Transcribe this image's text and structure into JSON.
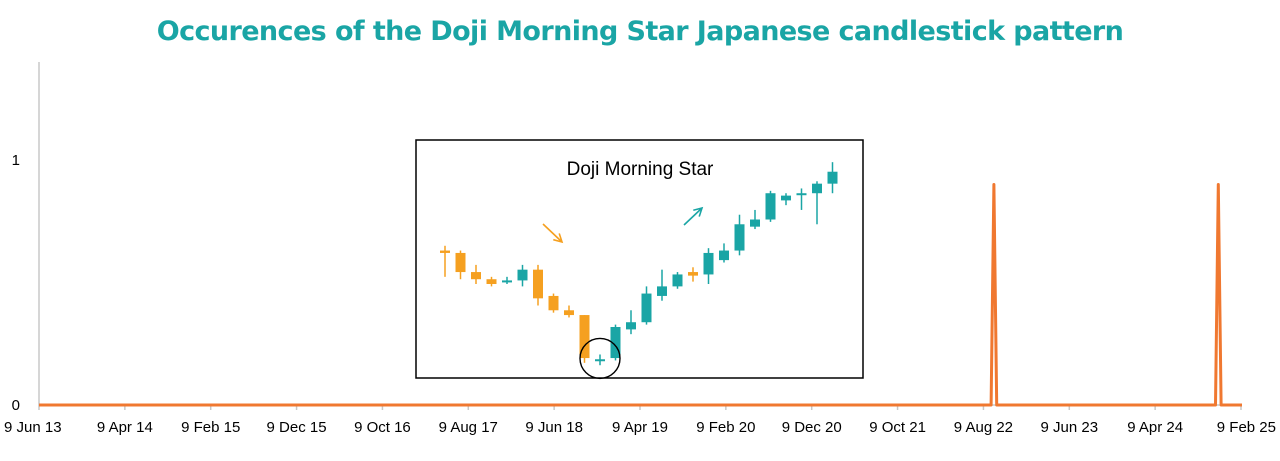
{
  "chart_data": {
    "type": "line",
    "title": "Occurences of the Doji Morning Star Japanese candlestick pattern",
    "xlabel": "",
    "ylabel": "",
    "x_tick_labels": [
      "9 Jun 13",
      "9 Apr 14",
      "9 Feb 15",
      "9 Dec 15",
      "9 Oct 16",
      "9 Aug 17",
      "9 Jun 18",
      "9 Apr 19",
      "9 Feb 20",
      "9 Dec 20",
      "9 Oct 21",
      "9 Aug 22",
      "9 Jun 23",
      "9 Apr 24",
      "9 Feb 25"
    ],
    "y_tick_labels": [
      "0",
      "1"
    ],
    "ylim": [
      0,
      1.4
    ],
    "grid": false,
    "series": [
      {
        "x": [
          "2013-06-09",
          "2022-09-05",
          "2022-09-15",
          "2022-09-25",
          "2024-11-10",
          "2024-11-20",
          "2024-11-30",
          "2025-03-01"
        ],
        "values": [
          0,
          0,
          0.9,
          0,
          0,
          0.9,
          0,
          0
        ]
      }
    ],
    "inset": {
      "title": "Doji Morning Star",
      "candles": [
        {
          "o": 0.68,
          "c": 0.67,
          "h": 0.7,
          "l": 0.57
        },
        {
          "o": 0.67,
          "c": 0.59,
          "h": 0.68,
          "l": 0.56
        },
        {
          "o": 0.59,
          "c": 0.56,
          "h": 0.62,
          "l": 0.54
        },
        {
          "o": 0.56,
          "c": 0.54,
          "h": 0.57,
          "l": 0.53
        },
        {
          "o": 0.55,
          "c": 0.555,
          "h": 0.57,
          "l": 0.54
        },
        {
          "o": 0.555,
          "c": 0.6,
          "h": 0.62,
          "l": 0.53
        },
        {
          "o": 0.6,
          "c": 0.48,
          "h": 0.62,
          "l": 0.45
        },
        {
          "o": 0.49,
          "c": 0.43,
          "h": 0.5,
          "l": 0.42
        },
        {
          "o": 0.43,
          "c": 0.41,
          "h": 0.45,
          "l": 0.4
        },
        {
          "o": 0.41,
          "c": 0.23,
          "h": 0.41,
          "l": 0.21
        },
        {
          "o": 0.22,
          "c": 0.225,
          "h": 0.245,
          "l": 0.2
        },
        {
          "o": 0.23,
          "c": 0.36,
          "h": 0.37,
          "l": 0.22
        },
        {
          "o": 0.35,
          "c": 0.38,
          "h": 0.43,
          "l": 0.33
        },
        {
          "o": 0.38,
          "c": 0.5,
          "h": 0.53,
          "l": 0.37
        },
        {
          "o": 0.49,
          "c": 0.53,
          "h": 0.6,
          "l": 0.47
        },
        {
          "o": 0.53,
          "c": 0.58,
          "h": 0.59,
          "l": 0.52
        },
        {
          "o": 0.59,
          "c": 0.575,
          "h": 0.61,
          "l": 0.55
        },
        {
          "o": 0.58,
          "c": 0.67,
          "h": 0.69,
          "l": 0.54
        },
        {
          "o": 0.64,
          "c": 0.68,
          "h": 0.71,
          "l": 0.63
        },
        {
          "o": 0.68,
          "c": 0.79,
          "h": 0.83,
          "l": 0.66
        },
        {
          "o": 0.78,
          "c": 0.81,
          "h": 0.85,
          "l": 0.77
        },
        {
          "o": 0.81,
          "c": 0.92,
          "h": 0.93,
          "l": 0.8
        },
        {
          "o": 0.89,
          "c": 0.91,
          "h": 0.92,
          "l": 0.87
        },
        {
          "o": 0.915,
          "c": 0.92,
          "h": 0.94,
          "l": 0.85
        },
        {
          "o": 0.92,
          "c": 0.96,
          "h": 0.97,
          "l": 0.79
        },
        {
          "o": 0.96,
          "c": 1.01,
          "h": 1.05,
          "l": 0.92
        }
      ]
    }
  },
  "colors": {
    "title": "#1aa5a5",
    "series_line": "#f07830",
    "bullish": "#1aa5a5",
    "bearish": "#f5a020",
    "axis": "#c8c8c8"
  }
}
